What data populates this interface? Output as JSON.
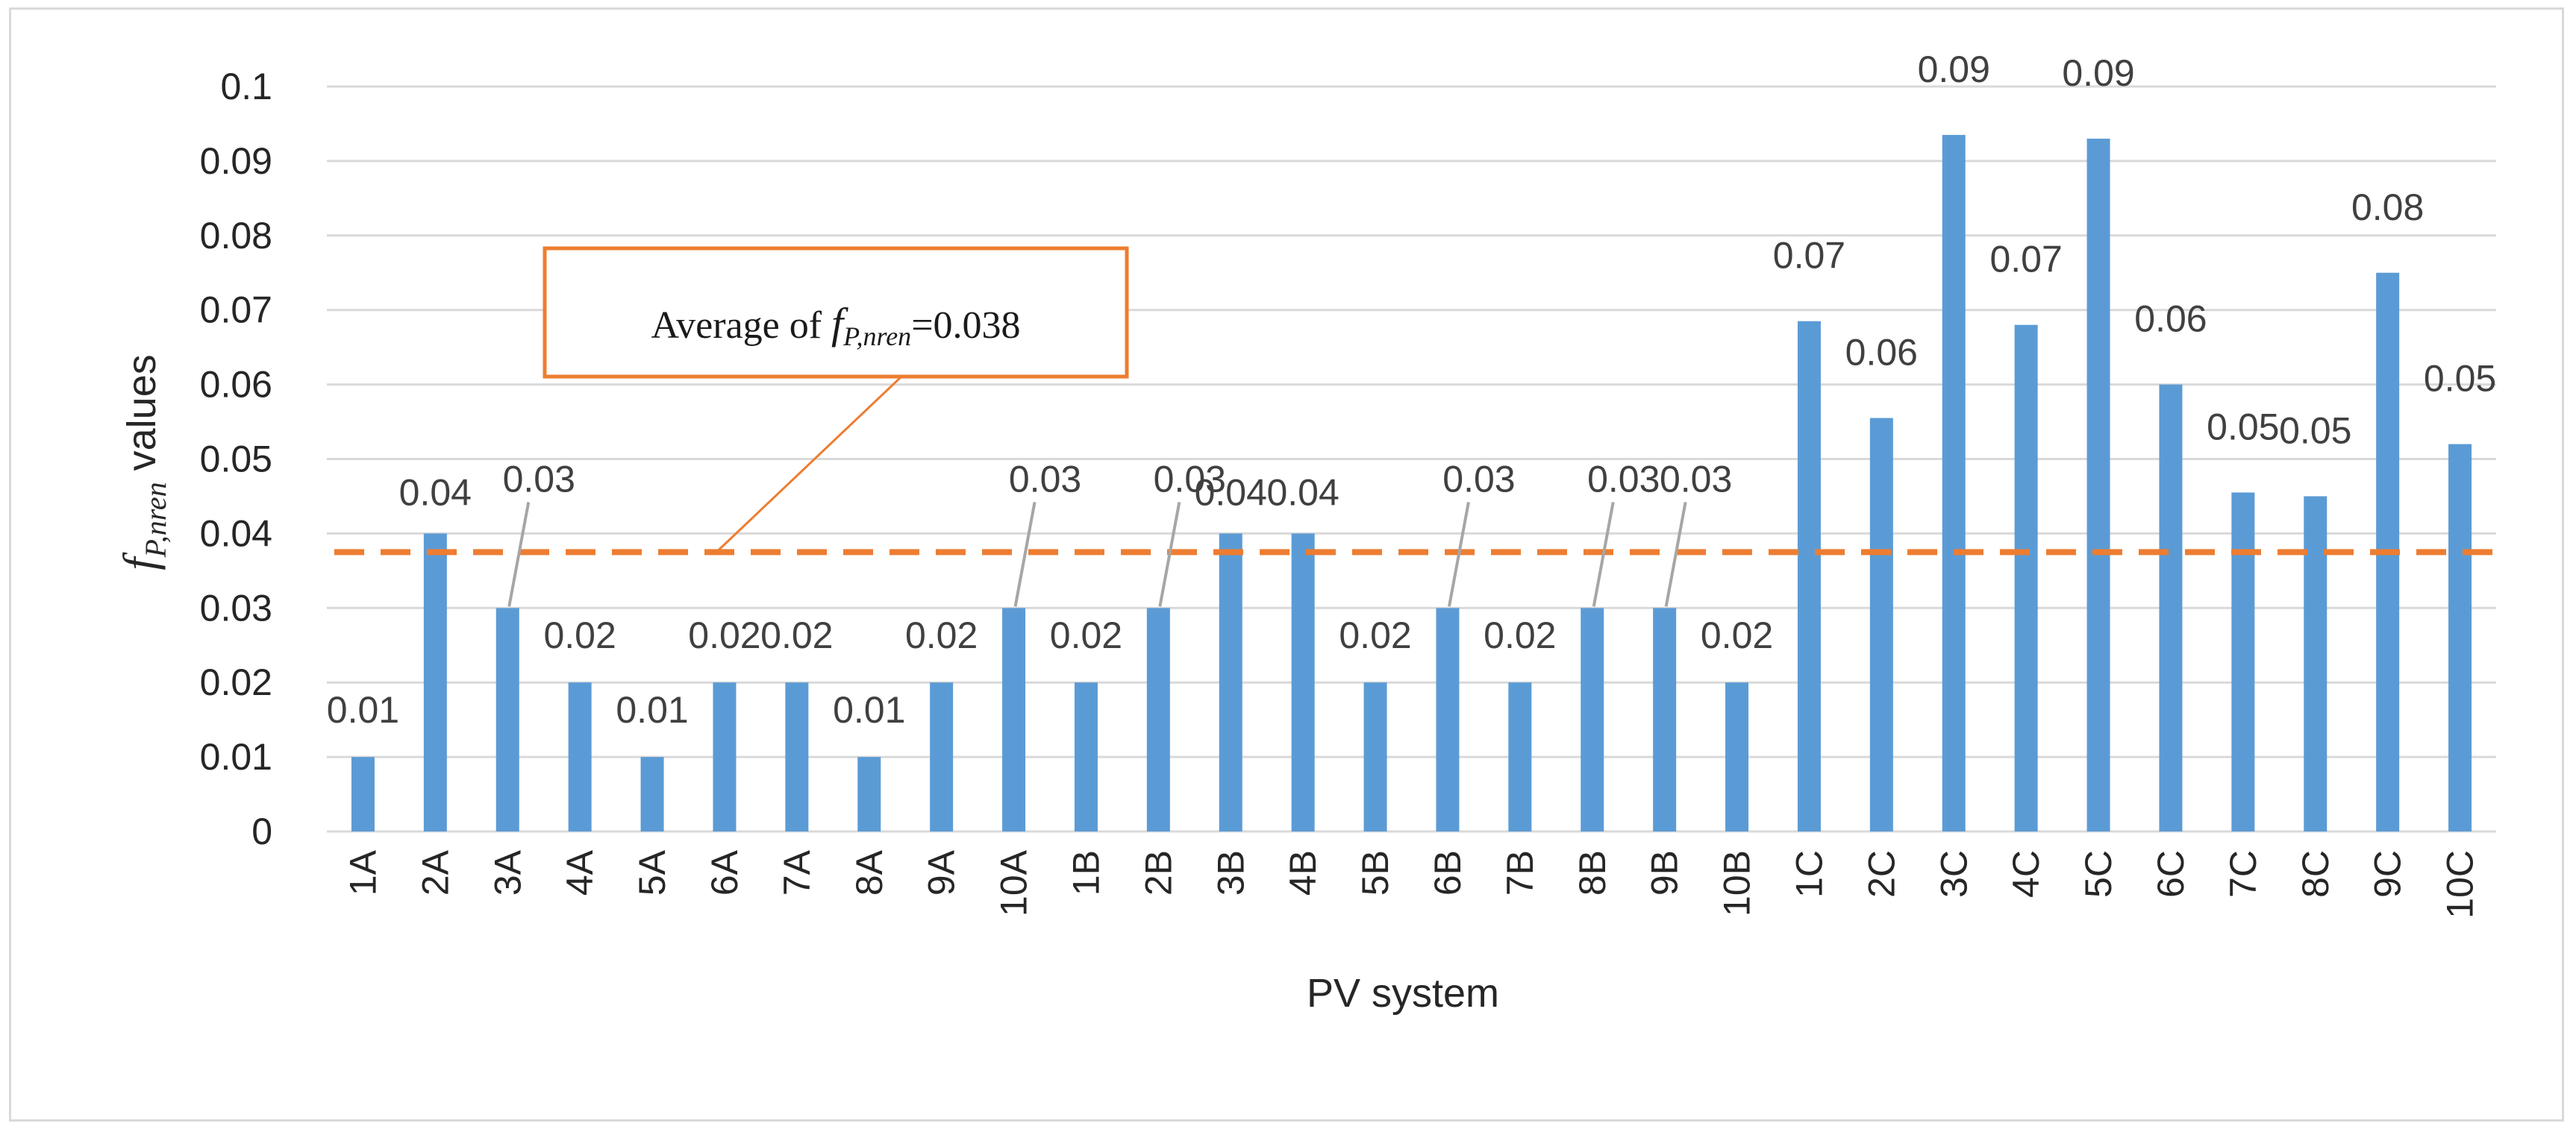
{
  "chart_data": {
    "type": "bar",
    "title": "",
    "xlabel": "PV system",
    "ylabel_main": "f",
    "ylabel_sub": "P,nren",
    "ylabel_rest": " values",
    "ylim": [
      0,
      0.1
    ],
    "yticks": [
      0,
      0.01,
      0.02,
      0.03,
      0.04,
      0.05,
      0.06,
      0.07,
      0.08,
      0.09,
      0.1
    ],
    "ytick_labels": [
      "0",
      "0.01",
      "0.02",
      "0.03",
      "0.04",
      "0.05",
      "0.06",
      "0.07",
      "0.08",
      "0.09",
      "0.1"
    ],
    "grid": true,
    "categories": [
      "1A",
      "2A",
      "3A",
      "4A",
      "5A",
      "6A",
      "7A",
      "8A",
      "9A",
      "10A",
      "1B",
      "2B",
      "3B",
      "4B",
      "5B",
      "6B",
      "7B",
      "8B",
      "9B",
      "10B",
      "1C",
      "2C",
      "3C",
      "4C",
      "5C",
      "6C",
      "7C",
      "8C",
      "9C",
      "10C"
    ],
    "values": [
      0.01,
      0.04,
      0.03,
      0.02,
      0.01,
      0.02,
      0.02,
      0.01,
      0.02,
      0.03,
      0.02,
      0.03,
      0.04,
      0.04,
      0.02,
      0.03,
      0.02,
      0.03,
      0.03,
      0.02,
      0.0685,
      0.0555,
      0.0935,
      0.068,
      0.093,
      0.06,
      0.0455,
      0.045,
      0.075,
      0.052
    ],
    "data_labels": [
      "0.01",
      "0.04",
      "0.03",
      "0.02",
      "0.01",
      "0.02",
      "0.02",
      "0.01",
      "0.02",
      "0.03",
      "0.02",
      "0.03",
      "0.04",
      "0.04",
      "0.02",
      "0.03",
      "0.02",
      "0.03",
      "0.03",
      "0.02",
      "0.07",
      "0.06",
      "0.09",
      "0.07",
      "0.09",
      "0.06",
      "0.05",
      "0.05",
      "0.08",
      "0.05"
    ],
    "average": 0.038,
    "average_line_value": 0.0375,
    "annotation": {
      "prefix": "Average of ",
      "symbol": "f",
      "subscript": "P,nren",
      "suffix": "=0.038"
    },
    "colors": {
      "bar": "#5b9bd5",
      "average_line": "#ed7d31",
      "annotation_border": "#ed7d31",
      "grid": "#d9d9d9",
      "leader": "#a6a6a6"
    }
  }
}
